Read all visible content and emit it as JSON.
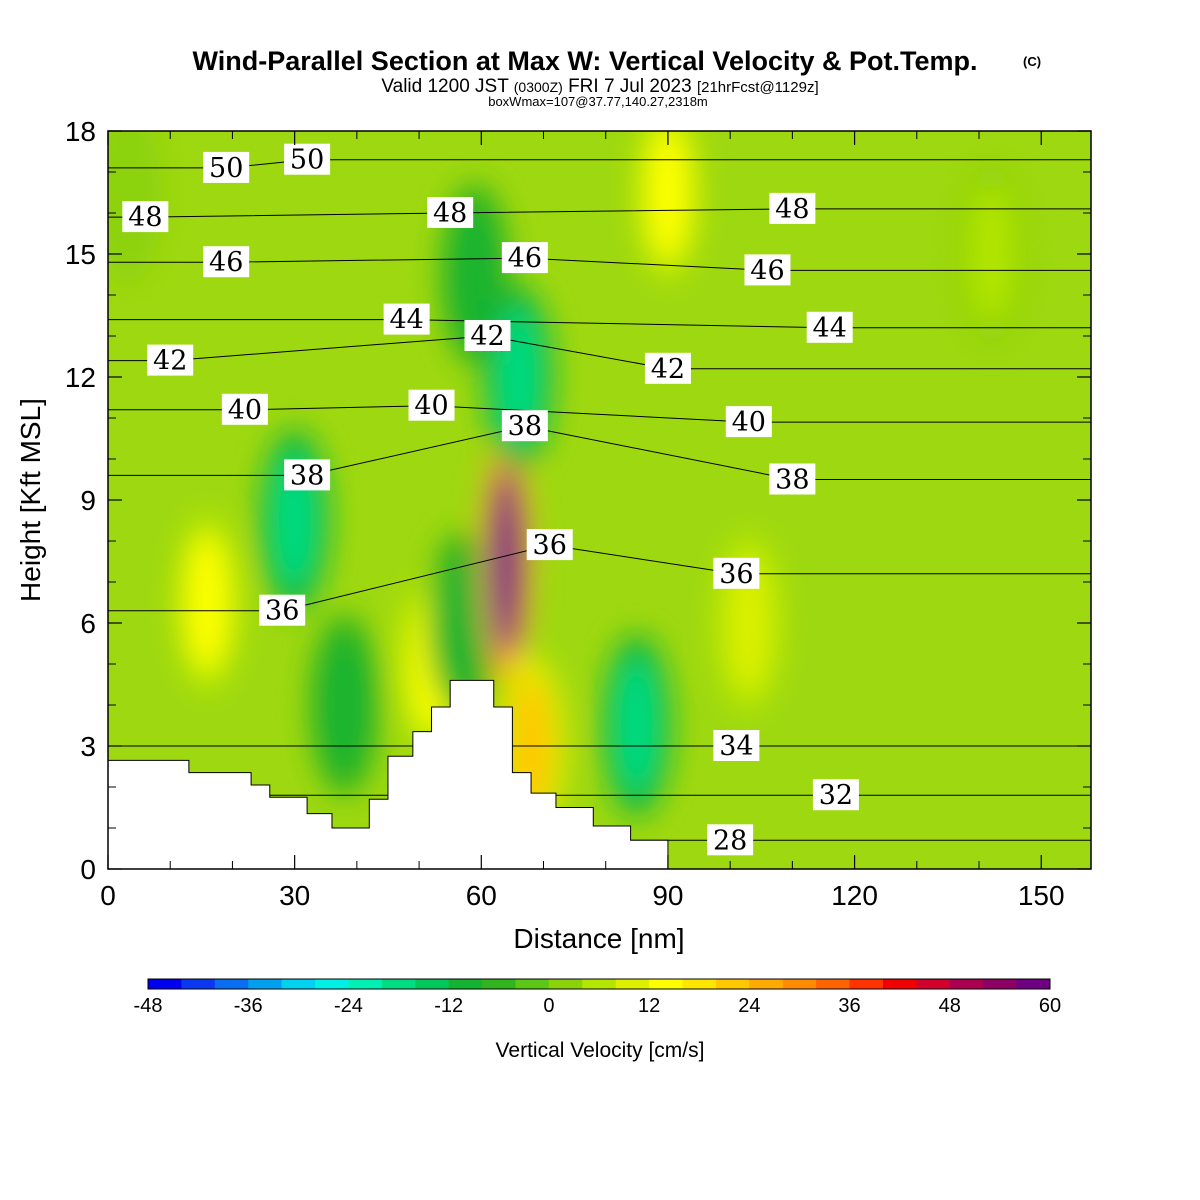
{
  "chart_data": {
    "type": "heatmap",
    "title": "Wind-Parallel Section at Max W: Vertical Velocity & Pot.Temp.",
    "copyright_mark": "(C)",
    "subtitle_parts": [
      "Valid 1200 JST",
      "(0300Z)",
      "FRI 7 Jul 2023",
      "[21hrFcst@1129z]"
    ],
    "info_line": "boxWmax=107@37.77,140.27,2318m",
    "xlabel": "Distance [nm]",
    "ylabel": "Height [Kft MSL]",
    "xlim": [
      0,
      158
    ],
    "ylim": [
      0,
      18
    ],
    "x_ticks": [
      "0",
      "30",
      "60",
      "90",
      "120",
      "150"
    ],
    "y_ticks": [
      "0",
      "3",
      "6",
      "9",
      "12",
      "15",
      "18"
    ],
    "grid": false,
    "colorbar": {
      "label": "Vertical Velocity [cm/s]",
      "placement": "bottom",
      "ticks": [
        "-48",
        "-36",
        "-24",
        "-12",
        "0",
        "12",
        "24",
        "36",
        "48",
        "60"
      ],
      "min": -48,
      "max": 60,
      "step": 4,
      "colors": [
        "#0000f0",
        "#0a37f0",
        "#0a6ef0",
        "#00a0f0",
        "#00d2f0",
        "#00f0e6",
        "#00f0b4",
        "#00dc82",
        "#00c85a",
        "#14b432",
        "#32b41e",
        "#5ac814",
        "#8cd20a",
        "#b4e600",
        "#dcf000",
        "#ffff00",
        "#ffe600",
        "#ffc800",
        "#ffaa00",
        "#ff8c00",
        "#ff6400",
        "#ff3200",
        "#f00000",
        "#d2002d",
        "#aa0050",
        "#8c0064",
        "#6e0082"
      ]
    },
    "series": [
      {
        "name": "Vertical Velocity",
        "units": "cm/s",
        "cells": [
          {
            "x": 3,
            "z": 16.5,
            "w": 0
          },
          {
            "x": 16,
            "z": 6.5,
            "w": 15
          },
          {
            "x": 30,
            "z": 8.5,
            "w": -20
          },
          {
            "x": 38,
            "z": 4,
            "w": -10
          },
          {
            "x": 52,
            "z": 5,
            "w": 15
          },
          {
            "x": 57,
            "z": 6,
            "w": -10
          },
          {
            "x": 59,
            "z": 14.5,
            "w": -12
          },
          {
            "x": 64,
            "z": 7.5,
            "w": 60
          },
          {
            "x": 66,
            "z": 12,
            "w": -20
          },
          {
            "x": 68,
            "z": 3,
            "w": 20
          },
          {
            "x": 85,
            "z": 3.5,
            "w": -20
          },
          {
            "x": 90,
            "z": 16.5,
            "w": 15
          },
          {
            "x": 103,
            "z": 6,
            "w": 10
          },
          {
            "x": 142,
            "z": 15,
            "w": 6
          }
        ]
      },
      {
        "name": "Potential Temperature",
        "contour_labels": [
          {
            "text": "50",
            "x": 19,
            "z": 17.1
          },
          {
            "text": "50",
            "x": 32,
            "z": 17.3
          },
          {
            "text": "48",
            "x": 6,
            "z": 15.9
          },
          {
            "text": "48",
            "x": 55,
            "z": 16.0
          },
          {
            "text": "48",
            "x": 110,
            "z": 16.1
          },
          {
            "text": "46",
            "x": 19,
            "z": 14.8
          },
          {
            "text": "46",
            "x": 67,
            "z": 14.9
          },
          {
            "text": "46",
            "x": 106,
            "z": 14.6
          },
          {
            "text": "44",
            "x": 48,
            "z": 13.4
          },
          {
            "text": "44",
            "x": 116,
            "z": 13.2
          },
          {
            "text": "42",
            "x": 10,
            "z": 12.4
          },
          {
            "text": "42",
            "x": 61,
            "z": 13.0
          },
          {
            "text": "42",
            "x": 90,
            "z": 12.2
          },
          {
            "text": "40",
            "x": 22,
            "z": 11.2
          },
          {
            "text": "40",
            "x": 52,
            "z": 11.3
          },
          {
            "text": "40",
            "x": 103,
            "z": 10.9
          },
          {
            "text": "38",
            "x": 32,
            "z": 9.6
          },
          {
            "text": "38",
            "x": 67,
            "z": 10.8
          },
          {
            "text": "38",
            "x": 110,
            "z": 9.5
          },
          {
            "text": "36",
            "x": 28,
            "z": 6.3
          },
          {
            "text": "36",
            "x": 71,
            "z": 7.9
          },
          {
            "text": "36",
            "x": 101,
            "z": 7.2
          },
          {
            "text": "34",
            "x": 101,
            "z": 3.0
          },
          {
            "text": "32",
            "x": 117,
            "z": 1.8
          },
          {
            "text": "28",
            "x": 100,
            "z": 0.7
          }
        ]
      }
    ],
    "terrain_profile": [
      [
        0,
        2.65
      ],
      [
        13,
        2.65
      ],
      [
        13,
        2.35
      ],
      [
        23,
        2.35
      ],
      [
        23,
        2.05
      ],
      [
        26,
        2.05
      ],
      [
        26,
        1.75
      ],
      [
        32,
        1.75
      ],
      [
        32,
        1.35
      ],
      [
        36,
        1.35
      ],
      [
        36,
        1.0
      ],
      [
        42,
        1.0
      ],
      [
        42,
        1.7
      ],
      [
        45,
        1.7
      ],
      [
        45,
        2.75
      ],
      [
        49,
        2.75
      ],
      [
        49,
        3.35
      ],
      [
        52,
        3.35
      ],
      [
        52,
        3.95
      ],
      [
        55,
        3.95
      ],
      [
        55,
        4.6
      ],
      [
        62,
        4.6
      ],
      [
        62,
        3.95
      ],
      [
        65,
        3.95
      ],
      [
        65,
        2.35
      ],
      [
        68,
        2.35
      ],
      [
        68,
        1.85
      ],
      [
        72,
        1.85
      ],
      [
        72,
        1.5
      ],
      [
        78,
        1.5
      ],
      [
        78,
        1.05
      ],
      [
        84,
        1.05
      ],
      [
        84,
        0.7
      ],
      [
        90,
        0.7
      ],
      [
        90,
        0.0
      ]
    ]
  }
}
